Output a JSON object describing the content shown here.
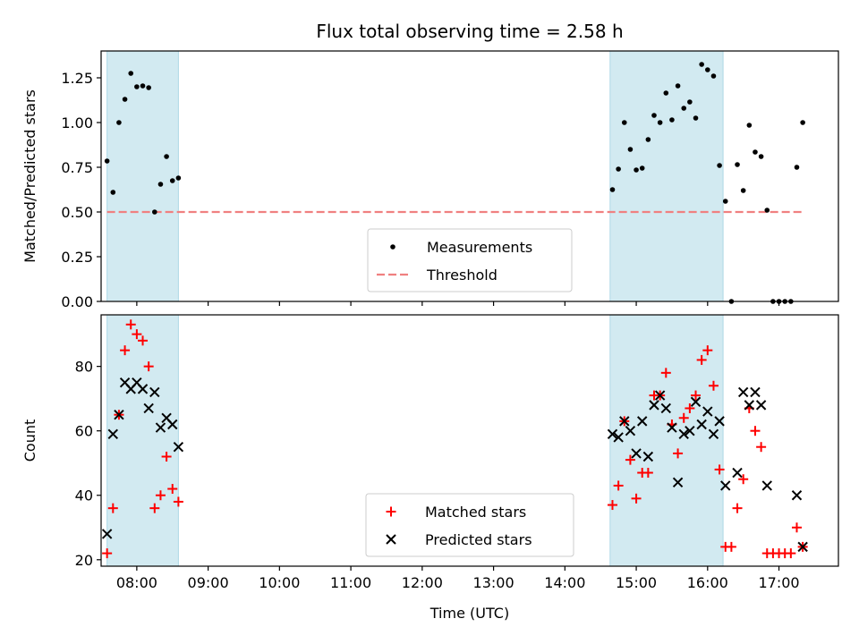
{
  "chart_data": [
    {
      "type": "scatter",
      "title": "Flux total observing time = 2.58 h",
      "xlabel": "",
      "ylabel": "Matched/Predicted stars",
      "xlim": [
        "07:30",
        "17:50"
      ],
      "ylim": [
        0,
        1.4
      ],
      "yticks": [
        0,
        0.25,
        0.5,
        0.75,
        1.0,
        1.25
      ],
      "ytick_labels": [
        "0.00",
        "0.25",
        "0.50",
        "0.75",
        "1.00",
        "1.25"
      ],
      "xtick_labels_shown": false,
      "grid": false,
      "legend_position": "lower-center",
      "shaded_intervals": [
        [
          "07:35",
          "08:35"
        ],
        [
          "14:38",
          "16:13"
        ]
      ],
      "shade_color": "#add8e6",
      "threshold": {
        "name": "Threshold",
        "value": 0.5,
        "x": [
          "07:35",
          "17:20"
        ],
        "color": "#f08080",
        "style": "dashed"
      },
      "series": [
        {
          "name": "Measurements",
          "marker": "dot",
          "color": "#000000",
          "points": [
            [
              "07:35",
              0.785
            ],
            [
              "07:40",
              0.61
            ],
            [
              "07:45",
              1.0
            ],
            [
              "07:50",
              1.13
            ],
            [
              "07:55",
              1.275
            ],
            [
              "08:00",
              1.2
            ],
            [
              "08:05",
              1.205
            ],
            [
              "08:10",
              1.195
            ],
            [
              "08:15",
              0.5
            ],
            [
              "08:20",
              0.655
            ],
            [
              "08:25",
              0.81
            ],
            [
              "08:30",
              0.675
            ],
            [
              "08:35",
              0.69
            ],
            [
              "14:40",
              0.625
            ],
            [
              "14:45",
              0.74
            ],
            [
              "14:50",
              1.0
            ],
            [
              "14:55",
              0.85
            ],
            [
              "15:00",
              0.735
            ],
            [
              "15:05",
              0.745
            ],
            [
              "15:10",
              0.905
            ],
            [
              "15:15",
              1.04
            ],
            [
              "15:20",
              1.0
            ],
            [
              "15:25",
              1.165
            ],
            [
              "15:30",
              1.015
            ],
            [
              "15:35",
              1.205
            ],
            [
              "15:40",
              1.08
            ],
            [
              "15:45",
              1.115
            ],
            [
              "15:50",
              1.025
            ],
            [
              "15:55",
              1.325
            ],
            [
              "16:00",
              1.295
            ],
            [
              "16:05",
              1.26
            ],
            [
              "16:10",
              0.76
            ],
            [
              "16:15",
              0.56
            ],
            [
              "16:20",
              0.0
            ],
            [
              "16:25",
              0.765
            ],
            [
              "16:30",
              0.62
            ],
            [
              "16:35",
              0.985
            ],
            [
              "16:40",
              0.835
            ],
            [
              "16:45",
              0.81
            ],
            [
              "16:50",
              0.51
            ],
            [
              "16:55",
              0.0
            ],
            [
              "17:00",
              0.0
            ],
            [
              "17:05",
              0.0
            ],
            [
              "17:10",
              0.0
            ],
            [
              "17:15",
              0.75
            ],
            [
              "17:20",
              1.0
            ]
          ]
        }
      ]
    },
    {
      "type": "scatter",
      "title": "",
      "xlabel": "Time (UTC)",
      "ylabel": "Count",
      "xlim": [
        "07:30",
        "17:50"
      ],
      "ylim": [
        18,
        96
      ],
      "yticks": [
        20,
        40,
        60,
        80
      ],
      "ytick_labels": [
        "20",
        "40",
        "60",
        "80"
      ],
      "xticks": [
        "08:00",
        "09:00",
        "10:00",
        "11:00",
        "12:00",
        "13:00",
        "14:00",
        "15:00",
        "16:00",
        "17:00"
      ],
      "xtick_labels": [
        "08:00",
        "09:00",
        "10:00",
        "11:00",
        "12:00",
        "13:00",
        "14:00",
        "15:00",
        "16:00",
        "17:00"
      ],
      "grid": false,
      "legend_position": "lower-center",
      "shaded_intervals": [
        [
          "07:35",
          "08:35"
        ],
        [
          "14:38",
          "16:13"
        ]
      ],
      "shade_color": "#add8e6",
      "series": [
        {
          "name": "Matched stars",
          "marker": "plus",
          "color": "#ff0000",
          "points": [
            [
              "07:35",
              22
            ],
            [
              "07:40",
              36
            ],
            [
              "07:45",
              65
            ],
            [
              "07:50",
              85
            ],
            [
              "07:55",
              93
            ],
            [
              "08:00",
              90
            ],
            [
              "08:05",
              88
            ],
            [
              "08:10",
              80
            ],
            [
              "08:15",
              36
            ],
            [
              "08:20",
              40
            ],
            [
              "08:25",
              52
            ],
            [
              "08:30",
              42
            ],
            [
              "08:35",
              38
            ],
            [
              "14:40",
              37
            ],
            [
              "14:45",
              43
            ],
            [
              "14:50",
              63
            ],
            [
              "14:55",
              51
            ],
            [
              "15:00",
              39
            ],
            [
              "15:05",
              47
            ],
            [
              "15:10",
              47
            ],
            [
              "15:15",
              71
            ],
            [
              "15:20",
              71
            ],
            [
              "15:25",
              78
            ],
            [
              "15:30",
              62
            ],
            [
              "15:35",
              53
            ],
            [
              "15:40",
              64
            ],
            [
              "15:45",
              67
            ],
            [
              "15:50",
              71
            ],
            [
              "15:55",
              82
            ],
            [
              "16:00",
              85
            ],
            [
              "16:05",
              74
            ],
            [
              "16:10",
              48
            ],
            [
              "16:15",
              24
            ],
            [
              "16:20",
              24
            ],
            [
              "16:25",
              36
            ],
            [
              "16:30",
              45
            ],
            [
              "16:35",
              67
            ],
            [
              "16:40",
              60
            ],
            [
              "16:45",
              55
            ],
            [
              "16:50",
              22
            ],
            [
              "16:55",
              22
            ],
            [
              "17:00",
              22
            ],
            [
              "17:05",
              22
            ],
            [
              "17:10",
              22
            ],
            [
              "17:15",
              30
            ],
            [
              "17:20",
              24
            ]
          ]
        },
        {
          "name": "Predicted stars",
          "marker": "x",
          "color": "#000000",
          "points": [
            [
              "07:35",
              28
            ],
            [
              "07:40",
              59
            ],
            [
              "07:45",
              65
            ],
            [
              "07:50",
              75
            ],
            [
              "07:55",
              73
            ],
            [
              "08:00",
              75
            ],
            [
              "08:05",
              73
            ],
            [
              "08:10",
              67
            ],
            [
              "08:15",
              72
            ],
            [
              "08:20",
              61
            ],
            [
              "08:25",
              64
            ],
            [
              "08:30",
              62
            ],
            [
              "08:35",
              55
            ],
            [
              "14:40",
              59
            ],
            [
              "14:45",
              58
            ],
            [
              "14:50",
              63
            ],
            [
              "14:55",
              60
            ],
            [
              "15:00",
              53
            ],
            [
              "15:05",
              63
            ],
            [
              "15:10",
              52
            ],
            [
              "15:15",
              68
            ],
            [
              "15:20",
              71
            ],
            [
              "15:25",
              67
            ],
            [
              "15:30",
              61
            ],
            [
              "15:35",
              44
            ],
            [
              "15:40",
              59
            ],
            [
              "15:45",
              60
            ],
            [
              "15:50",
              69
            ],
            [
              "15:55",
              62
            ],
            [
              "16:00",
              66
            ],
            [
              "16:05",
              59
            ],
            [
              "16:10",
              63
            ],
            [
              "16:15",
              43
            ],
            [
              "16:25",
              47
            ],
            [
              "16:30",
              72
            ],
            [
              "16:35",
              68
            ],
            [
              "16:40",
              72
            ],
            [
              "16:45",
              68
            ],
            [
              "16:50",
              43
            ],
            [
              "17:15",
              40
            ],
            [
              "17:20",
              24
            ]
          ]
        }
      ]
    }
  ]
}
